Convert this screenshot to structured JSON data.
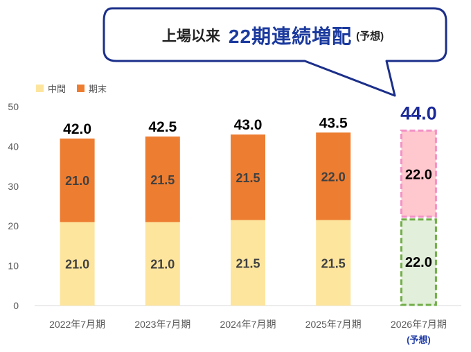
{
  "headline": {
    "main": "上場以来",
    "accent": "22期連続増配",
    "note": "(予想)"
  },
  "chart_data": {
    "type": "bar",
    "stacked": true,
    "categories": [
      "2022年7月期",
      "2023年7月期",
      "2024年7月期",
      "2025年7月期",
      "2026年7月期"
    ],
    "category_notes": [
      "",
      "",
      "",
      "",
      "(予想)"
    ],
    "series": [
      {
        "name": "中間",
        "values": [
          21.0,
          21.0,
          21.5,
          21.5,
          22.0
        ],
        "labels": [
          "21.0",
          "21.0",
          "21.5",
          "21.5",
          "22.0"
        ]
      },
      {
        "name": "期末",
        "values": [
          21.0,
          21.5,
          21.5,
          22.0,
          22.0
        ],
        "labels": [
          "21.0",
          "21.5",
          "21.5",
          "22.0",
          "22.0"
        ]
      }
    ],
    "totals": [
      "42.0",
      "42.5",
      "43.0",
      "43.5",
      "44.0"
    ],
    "forecast_index": 4,
    "ylim": [
      0,
      50
    ],
    "yticks": [
      0,
      10,
      20,
      30,
      40,
      50
    ],
    "ytick_labels": [
      "0",
      "10",
      "20",
      "30",
      "40",
      "50"
    ],
    "legend_position": "top-left",
    "grid": false,
    "colors": {
      "interim": "#fde59e",
      "final": "#ed7d31",
      "forecast_interim_fill": "#e2efda",
      "forecast_interim_border": "#70ad47",
      "forecast_final_fill": "#ffc7ce",
      "forecast_final_border": "#f291c6",
      "forecast_total": "#1b2a99",
      "callout_border": "#1b2f8a"
    }
  }
}
